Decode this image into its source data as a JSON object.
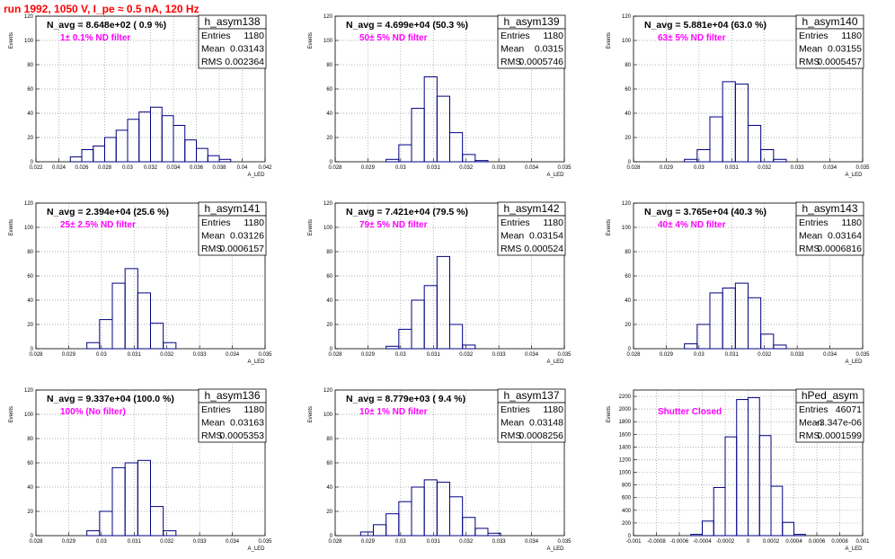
{
  "page": {
    "title": "run 1992,  1050 V, I_pe ≈ 0.5 nA, 120 Hz"
  },
  "chart_data": [
    {
      "type": "histogram",
      "name": "h_asym138",
      "ylabel": "Events",
      "xlabel": "A_LED",
      "xlim": [
        0.022,
        0.042
      ],
      "ylim": [
        0,
        120
      ],
      "xticks": [
        "0.022",
        "0.024",
        "0.026",
        "0.028",
        "0.03",
        "0.032",
        "0.034",
        "0.036",
        "0.038",
        "0.04",
        "0.042"
      ],
      "yticks": [
        "0",
        "20",
        "40",
        "60",
        "80",
        "100",
        "120"
      ],
      "annotation": "N_avg = 8.648e+02 ( 0.9 %)",
      "filter": "1± 0.1% ND filter",
      "stats": {
        "entries": "1180",
        "mean": "0.03143",
        "rms": "0.002364"
      },
      "bins_x": [
        0.0255,
        0.0265,
        0.0275,
        0.0285,
        0.0295,
        0.0305,
        0.0315,
        0.0325,
        0.0335,
        0.0345,
        0.0355,
        0.0365,
        0.0375,
        0.0385
      ],
      "bins_y": [
        4,
        10,
        13,
        20,
        26,
        35,
        41,
        45,
        38,
        30,
        18,
        11,
        5,
        2
      ]
    },
    {
      "type": "histogram",
      "name": "h_asym139",
      "ylabel": "Events",
      "xlabel": "A_LED",
      "xlim": [
        0.0275,
        0.0365
      ],
      "ylim": [
        0,
        120
      ],
      "xticks": [
        "0.028",
        "0.029",
        "0.03",
        "0.031",
        "0.032",
        "0.033",
        "0.034",
        "0.035"
      ],
      "yticks": [
        "0",
        "20",
        "40",
        "60",
        "80",
        "100",
        "120"
      ],
      "annotation": "N_avg = 4.699e+04 (50.3 %)",
      "filter": "50± 5% ND filter",
      "stats": {
        "entries": "1180",
        "mean": "0.0315",
        "rms": "0.0005746"
      },
      "bins_x": [
        0.02975,
        0.03025,
        0.03075,
        0.03125,
        0.03175,
        0.03225,
        0.03275,
        0.03325
      ],
      "bins_y": [
        2,
        14,
        44,
        70,
        54,
        24,
        6,
        1
      ]
    },
    {
      "type": "histogram",
      "name": "h_asym140",
      "ylabel": "Events",
      "xlabel": "A_LED",
      "xlim": [
        0.0275,
        0.0365
      ],
      "ylim": [
        0,
        120
      ],
      "xticks": [
        "0.028",
        "0.029",
        "0.03",
        "0.031",
        "0.032",
        "0.033",
        "0.034",
        "0.035"
      ],
      "yticks": [
        "0",
        "20",
        "40",
        "60",
        "80",
        "100",
        "120"
      ],
      "annotation": "N_avg = 5.881e+04 (63.0 %)",
      "filter": "63± 5% ND filter",
      "stats": {
        "entries": "1180",
        "mean": "0.03155",
        "rms": "0.0005457"
      },
      "bins_x": [
        0.02975,
        0.03025,
        0.03075,
        0.03125,
        0.03175,
        0.03225,
        0.03275,
        0.03325
      ],
      "bins_y": [
        2,
        10,
        37,
        66,
        64,
        30,
        10,
        2
      ]
    },
    {
      "type": "histogram",
      "name": "h_asym141",
      "ylabel": "Events",
      "xlabel": "A_LED",
      "xlim": [
        0.0275,
        0.0365
      ],
      "ylim": [
        0,
        120
      ],
      "xticks": [
        "0.028",
        "0.029",
        "0.03",
        "0.031",
        "0.032",
        "0.033",
        "0.034",
        "0.035"
      ],
      "yticks": [
        "0",
        "20",
        "40",
        "60",
        "80",
        "100",
        "120"
      ],
      "annotation": "N_avg = 2.394e+04 (25.6 %)",
      "filter": "25± 2.5% ND filter",
      "stats": {
        "entries": "1180",
        "mean": "0.03126",
        "rms": "0.0006157"
      },
      "bins_x": [
        0.02975,
        0.03025,
        0.03075,
        0.03125,
        0.03175,
        0.03225,
        0.03275
      ],
      "bins_y": [
        5,
        24,
        54,
        66,
        46,
        21,
        5
      ]
    },
    {
      "type": "histogram",
      "name": "h_asym142",
      "ylabel": "Events",
      "xlabel": "A_LED",
      "xlim": [
        0.0275,
        0.0365
      ],
      "ylim": [
        0,
        120
      ],
      "xticks": [
        "0.028",
        "0.029",
        "0.03",
        "0.031",
        "0.032",
        "0.033",
        "0.034",
        "0.035"
      ],
      "yticks": [
        "0",
        "20",
        "40",
        "60",
        "80",
        "100",
        "120"
      ],
      "annotation": "N_avg = 7.421e+04 (79.5 %)",
      "filter": "79± 5% ND filter",
      "stats": {
        "entries": "1180",
        "mean": "0.03154",
        "rms": "0.000524"
      },
      "bins_x": [
        0.02975,
        0.03025,
        0.03075,
        0.03125,
        0.03175,
        0.03225,
        0.03275
      ],
      "bins_y": [
        2,
        16,
        40,
        52,
        76,
        20,
        3
      ]
    },
    {
      "type": "histogram",
      "name": "h_asym143",
      "ylabel": "Events",
      "xlabel": "A_LED",
      "xlim": [
        0.0275,
        0.0365
      ],
      "ylim": [
        0,
        120
      ],
      "xticks": [
        "0.028",
        "0.029",
        "0.03",
        "0.031",
        "0.032",
        "0.033",
        "0.034",
        "0.035"
      ],
      "yticks": [
        "0",
        "20",
        "40",
        "60",
        "80",
        "100",
        "120"
      ],
      "annotation": "N_avg = 3.765e+04 (40.3 %)",
      "filter": "40± 4% ND filter",
      "stats": {
        "entries": "1180",
        "mean": "0.03164",
        "rms": "0.0006816"
      },
      "bins_x": [
        0.02975,
        0.03025,
        0.03075,
        0.03125,
        0.03175,
        0.03225,
        0.03275,
        0.03325
      ],
      "bins_y": [
        4,
        20,
        46,
        50,
        54,
        42,
        12,
        3
      ]
    },
    {
      "type": "histogram",
      "name": "h_asym136",
      "ylabel": "Events",
      "xlabel": "A_LED",
      "xlim": [
        0.0275,
        0.0365
      ],
      "ylim": [
        0,
        120
      ],
      "xticks": [
        "0.028",
        "0.029",
        "0.03",
        "0.031",
        "0.032",
        "0.033",
        "0.034",
        "0.035"
      ],
      "yticks": [
        "0",
        "20",
        "40",
        "60",
        "80",
        "100",
        "120"
      ],
      "annotation": "N_avg = 9.337e+04 (100.0 %)",
      "filter": "100% (No filter)",
      "stats": {
        "entries": "1180",
        "mean": "0.03163",
        "rms": "0.0005353"
      },
      "bins_x": [
        0.02975,
        0.03025,
        0.03075,
        0.03125,
        0.03175,
        0.03225,
        0.03275
      ],
      "bins_y": [
        4,
        20,
        56,
        60,
        62,
        24,
        4
      ]
    },
    {
      "type": "histogram",
      "name": "h_asym137",
      "ylabel": "Events",
      "xlabel": "A_LED",
      "xlim": [
        0.0275,
        0.0365
      ],
      "ylim": [
        0,
        120
      ],
      "xticks": [
        "0.028",
        "0.029",
        "0.03",
        "0.031",
        "0.032",
        "0.033",
        "0.034",
        "0.035"
      ],
      "yticks": [
        "0",
        "20",
        "40",
        "60",
        "80",
        "100",
        "120"
      ],
      "annotation": "N_avg = 8.779e+03 ( 9.4 %)",
      "filter": "10± 1% ND filter",
      "stats": {
        "entries": "1180",
        "mean": "0.03148",
        "rms": "0.0008256"
      },
      "bins_x": [
        0.02875,
        0.02925,
        0.02975,
        0.03025,
        0.03075,
        0.03125,
        0.03175,
        0.03225,
        0.03275,
        0.03325,
        0.03375
      ],
      "bins_y": [
        3,
        9,
        18,
        28,
        40,
        46,
        44,
        32,
        15,
        6,
        2
      ]
    },
    {
      "type": "histogram",
      "name": "hPed_asym",
      "ylabel": "Events",
      "xlabel": "A_LED",
      "xlim": [
        -0.001,
        0.001
      ],
      "ylim": [
        0,
        2300
      ],
      "xticks": [
        "-0.001",
        "-0.0008",
        "-0.0006",
        "-0.0004",
        "-0.0002",
        "0",
        "0.0002",
        "0.0004",
        "0.0006",
        "0.0008",
        "0.001"
      ],
      "yticks": [
        "0",
        "200",
        "400",
        "600",
        "800",
        "1000",
        "1200",
        "1400",
        "1600",
        "1800",
        "2000",
        "2200"
      ],
      "annotation": "",
      "filter": "Shutter Closed",
      "stats": {
        "entries": "46071",
        "mean": "-3.347e-06",
        "rms": "0.0001599"
      },
      "bins_x": [
        -0.00045,
        -0.00035,
        -0.00025,
        -0.00015,
        -5e-05,
        5e-05,
        0.00015,
        0.00025,
        0.00035,
        0.00045
      ],
      "bins_y": [
        20,
        230,
        760,
        1560,
        2150,
        2180,
        1580,
        780,
        210,
        20
      ]
    }
  ]
}
